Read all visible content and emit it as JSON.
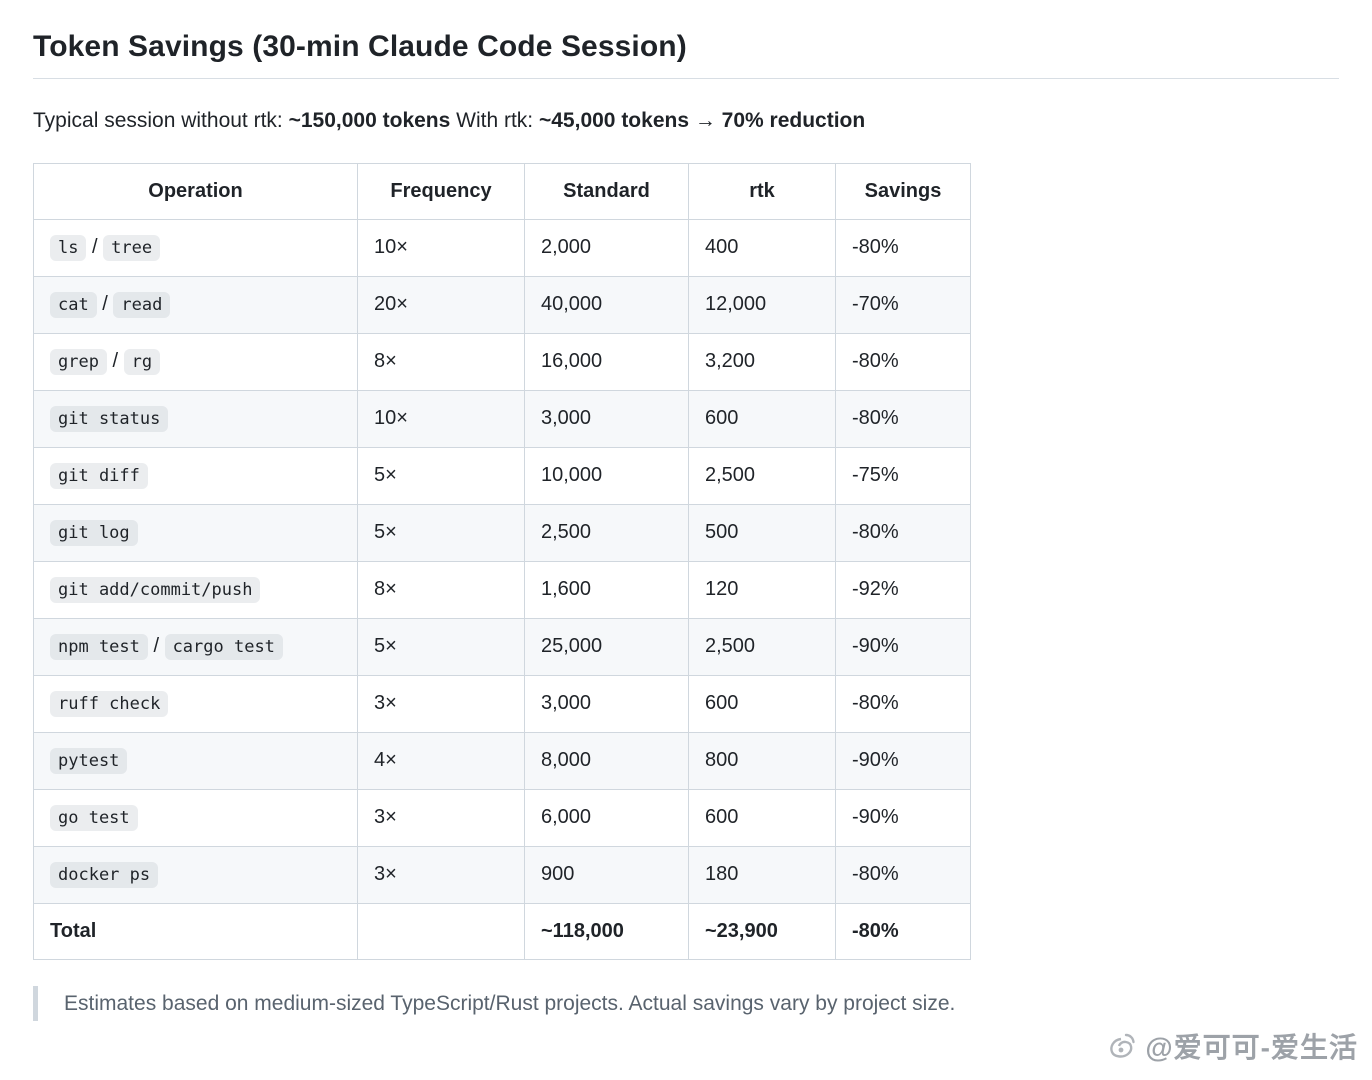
{
  "title": "Token Savings (30-min Claude Code Session)",
  "intro": {
    "segments": [
      {
        "text": "Typical session without rtk: ",
        "bold": false
      },
      {
        "text": "~150,000 tokens",
        "bold": true
      },
      {
        "text": " With rtk: ",
        "bold": false
      },
      {
        "text": "~45,000 tokens",
        "bold": true
      },
      {
        "text": " → ",
        "bold": true
      },
      {
        "text": "70% reduction",
        "bold": true
      }
    ]
  },
  "table": {
    "headers": [
      "Operation",
      "Frequency",
      "Standard",
      "rtk",
      "Savings"
    ],
    "rows": [
      {
        "operation": [
          {
            "code": "ls"
          },
          {
            "text": " / "
          },
          {
            "code": "tree"
          }
        ],
        "frequency": "10×",
        "standard": "2,000",
        "rtk": "400",
        "savings": "-80%",
        "total": false
      },
      {
        "operation": [
          {
            "code": "cat"
          },
          {
            "text": " / "
          },
          {
            "code": "read"
          }
        ],
        "frequency": "20×",
        "standard": "40,000",
        "rtk": "12,000",
        "savings": "-70%",
        "total": false
      },
      {
        "operation": [
          {
            "code": "grep"
          },
          {
            "text": " / "
          },
          {
            "code": "rg"
          }
        ],
        "frequency": "8×",
        "standard": "16,000",
        "rtk": "3,200",
        "savings": "-80%",
        "total": false
      },
      {
        "operation": [
          {
            "code": "git status"
          }
        ],
        "frequency": "10×",
        "standard": "3,000",
        "rtk": "600",
        "savings": "-80%",
        "total": false
      },
      {
        "operation": [
          {
            "code": "git diff"
          }
        ],
        "frequency": "5×",
        "standard": "10,000",
        "rtk": "2,500",
        "savings": "-75%",
        "total": false
      },
      {
        "operation": [
          {
            "code": "git log"
          }
        ],
        "frequency": "5×",
        "standard": "2,500",
        "rtk": "500",
        "savings": "-80%",
        "total": false
      },
      {
        "operation": [
          {
            "code": "git add/commit/push"
          }
        ],
        "frequency": "8×",
        "standard": "1,600",
        "rtk": "120",
        "savings": "-92%",
        "total": false
      },
      {
        "operation": [
          {
            "code": "npm test"
          },
          {
            "text": " / "
          },
          {
            "code": "cargo test"
          }
        ],
        "frequency": "5×",
        "standard": "25,000",
        "rtk": "2,500",
        "savings": "-90%",
        "total": false
      },
      {
        "operation": [
          {
            "code": "ruff check"
          }
        ],
        "frequency": "3×",
        "standard": "3,000",
        "rtk": "600",
        "savings": "-80%",
        "total": false
      },
      {
        "operation": [
          {
            "code": "pytest"
          }
        ],
        "frequency": "4×",
        "standard": "8,000",
        "rtk": "800",
        "savings": "-90%",
        "total": false
      },
      {
        "operation": [
          {
            "code": "go test"
          }
        ],
        "frequency": "3×",
        "standard": "6,000",
        "rtk": "600",
        "savings": "-90%",
        "total": false
      },
      {
        "operation": [
          {
            "code": "docker ps"
          }
        ],
        "frequency": "3×",
        "standard": "900",
        "rtk": "180",
        "savings": "-80%",
        "total": false
      },
      {
        "operation": [
          {
            "text": "Total"
          }
        ],
        "frequency": "",
        "standard": "~118,000",
        "rtk": "~23,900",
        "savings": "-80%",
        "total": true
      }
    ]
  },
  "note": "Estimates based on medium-sized TypeScript/Rust projects. Actual savings vary by project size.",
  "watermark": {
    "icon": "weibo-icon",
    "text": "@爱可可-爱生活"
  },
  "colors": {
    "border": "#d0d7de",
    "alt_row": "#f6f8fa",
    "note_text": "#59636e",
    "code_chip_bg": "#eff1f3"
  }
}
